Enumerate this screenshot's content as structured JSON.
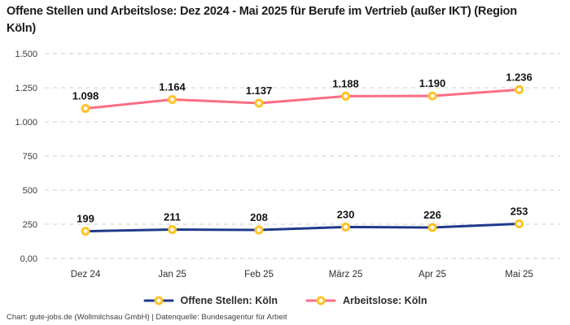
{
  "header": {
    "title": "Offene Stellen und Arbeitslose: Dez 2024 - Mai 2025 für Berufe im Vertrieb (außer IKT) (Region Köln)"
  },
  "footer": {
    "text": "Chart: gute-jobs.de (Wollmilchsau GmbH) | Datenquelle: Bundesagentur für Arbeit"
  },
  "colors": {
    "marker_ring": "#ffc226",
    "marker_fill": "#ffffff",
    "grid": "#cfcfcf",
    "title_text": "#1b1b1b",
    "data_label_text": "#141414"
  },
  "chart_data": {
    "type": "line",
    "title": "Offene Stellen und Arbeitslose: Dez 2024 - Mai 2025 für Berufe im Vertrieb (außer IKT) (Region Köln)",
    "categories": [
      "Dez 24",
      "Jan 25",
      "Feb 25",
      "März 25",
      "Apr 25",
      "Mai 25"
    ],
    "series": [
      {
        "name": "Offene Stellen: Köln",
        "key": "offene-stellen-koeln",
        "color": "#1f3a8c",
        "values": [
          199,
          211,
          208,
          230,
          226,
          253
        ],
        "labels": [
          "199",
          "211",
          "208",
          "230",
          "226",
          "253"
        ]
      },
      {
        "name": "Arbeitslose: Köln",
        "key": "arbeitslose-koeln",
        "color": "#fa6e84",
        "values": [
          1098,
          1164,
          1137,
          1188,
          1190,
          1236
        ],
        "labels": [
          "1.098",
          "1.164",
          "1.137",
          "1.188",
          "1.190",
          "1.236"
        ]
      }
    ],
    "y_ticks": [
      {
        "value": 0,
        "label": "0,00"
      },
      {
        "value": 250,
        "label": "250"
      },
      {
        "value": 500,
        "label": "500"
      },
      {
        "value": 750,
        "label": "750"
      },
      {
        "value": 1000,
        "label": "1.000"
      },
      {
        "value": 1250,
        "label": "1.250"
      },
      {
        "value": 1500,
        "label": "1.500"
      }
    ],
    "ylim": [
      0,
      1500
    ],
    "grid": true,
    "legend_position": "bottom"
  }
}
